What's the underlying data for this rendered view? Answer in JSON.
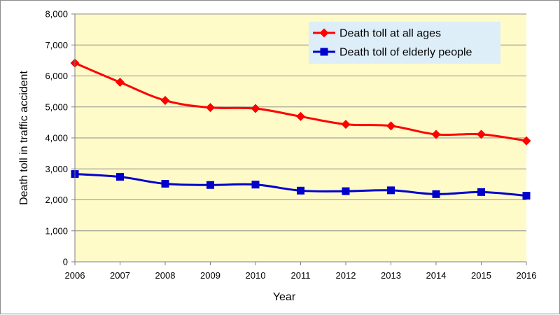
{
  "chart_data": {
    "type": "line",
    "xlabel": "Year",
    "ylabel": "Death toll in traffic accident",
    "categories": [
      "2006",
      "2007",
      "2008",
      "2009",
      "2010",
      "2011",
      "2012",
      "2013",
      "2014",
      "2015",
      "2016"
    ],
    "ylim": [
      0,
      8000
    ],
    "ytick_labels": [
      "0",
      "1,000",
      "2,000",
      "3,000",
      "4,000",
      "5,000",
      "6,000",
      "7,000",
      "8,000"
    ],
    "ytick_values": [
      0,
      1000,
      2000,
      3000,
      4000,
      5000,
      6000,
      7000,
      8000
    ],
    "grid": true,
    "plot_background": "#FFFBC8",
    "legend_position": "top-right",
    "legend_background": "#DDEEF8",
    "series": [
      {
        "name": "Death toll at all ages",
        "color": "#FF0000",
        "marker": "diamond",
        "values": [
          6415,
          5796,
          5209,
          4979,
          4948,
          4691,
          4438,
          4388,
          4113,
          4117,
          3904
        ]
      },
      {
        "name": "Death toll of elderly people",
        "color": "#0000CC",
        "marker": "square",
        "values": [
          2834,
          2743,
          2520,
          2480,
          2492,
          2298,
          2280,
          2308,
          2185,
          2252,
          2134
        ]
      }
    ]
  }
}
